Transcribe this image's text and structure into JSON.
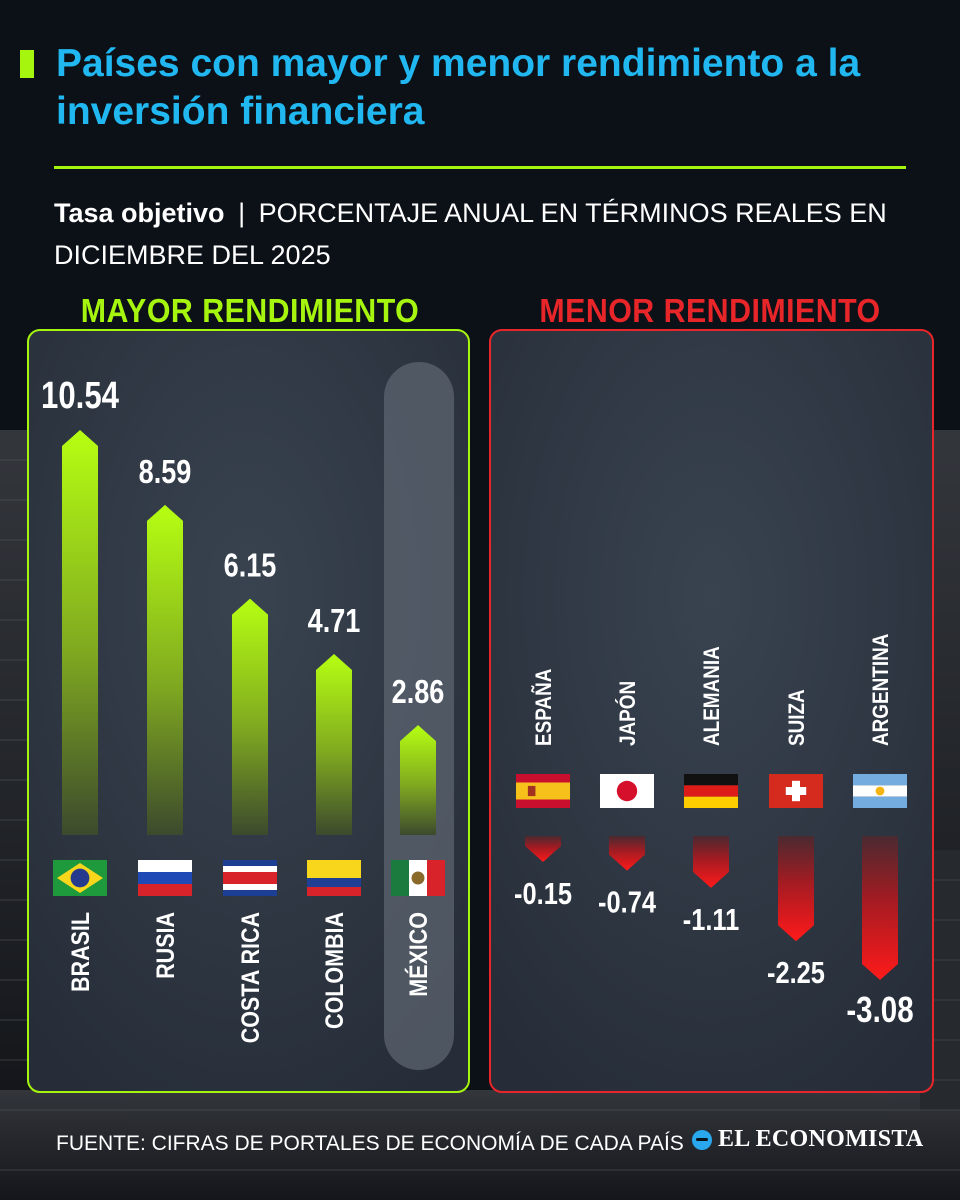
{
  "title": "Países con mayor y menor rendimiento a la inversión financiera",
  "subtitle": {
    "bold": "Tasa objetivo",
    "separator": "|",
    "text": "PORCENTAJE ANUAL EN TÉRMINOS REALES EN DICIEMBRE DEL 2025"
  },
  "chart_data": [
    {
      "type": "bar",
      "title": "MAYOR RENDIMIENTO",
      "categories": [
        "BRASIL",
        "RUSIA",
        "COSTA RICA",
        "COLOMBIA",
        "MÉXICO"
      ],
      "values": [
        10.54,
        8.59,
        6.15,
        4.71,
        2.86
      ],
      "value_labels": [
        "10.54",
        "8.59",
        "6.15",
        "4.71",
        "2.86"
      ],
      "highlight": "MÉXICO",
      "flags": [
        "brazil",
        "russia",
        "costa-rica",
        "colombia",
        "mexico"
      ],
      "ylim": [
        0,
        10.54
      ],
      "grid": false,
      "color": "#a6f50f"
    },
    {
      "type": "bar",
      "title": "MENOR RENDIMIENTO",
      "categories": [
        "ESPAÑA",
        "JAPÓN",
        "ALEMANIA",
        "SUIZA",
        "ARGENTINA"
      ],
      "values": [
        -0.15,
        -0.74,
        -1.11,
        -2.25,
        -3.08
      ],
      "value_labels": [
        "-0.15",
        "-0.74",
        "-1.11",
        "-2.25",
        "-3.08"
      ],
      "flags": [
        "spain",
        "japan",
        "germany",
        "switzerland",
        "argentina"
      ],
      "ylim": [
        -3.08,
        0
      ],
      "grid": false,
      "color": "#e8262a"
    }
  ],
  "footer": {
    "source": "FUENTE: CIFRAS DE PORTALES DE ECONOMÍA DE CADA PAÍS",
    "brand": "EL ECONOMISTA"
  },
  "colors": {
    "background": "#0c1017",
    "title": "#21b8f2",
    "accent_green": "#a6f50f",
    "accent_red": "#e8262a",
    "panel": "#2a323e"
  }
}
